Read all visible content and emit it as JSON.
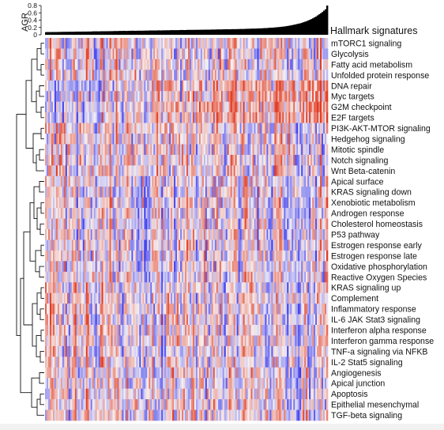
{
  "chart_data": {
    "type": "heatmap",
    "top_bar": {
      "ylabel": "AGR",
      "yticks": [
        "0.8",
        "0.6",
        "0.4",
        "0.2",
        "0"
      ],
      "ylim": [
        0,
        0.8
      ],
      "description_shape": "sorted ascending, mostly near 0.1, rising to ~0.8 at far right"
    },
    "title": "Hallmark signatures",
    "rows": [
      "mTORC1 signaling",
      "Glycolysis",
      "Fatty acid metabolism",
      "Unfolded protein response",
      "DNA repair",
      "Myc targets",
      "G2M checkpoint",
      "E2F targets",
      "PI3K-AKT-MTOR signaling",
      "Hedgehog signaling",
      "Mitotic spindle",
      "Notch signaling",
      "Wnt Beta-catenin",
      "Apical surface",
      "KRAS signaling down",
      "Xenobiotic metabolism",
      "Androgen response",
      "Cholesterol homeostasis",
      "P53 pathway",
      "Estrogen response early",
      "Estrogen response late",
      "Oxidative phosphorylation",
      "Reactive Oxygen Species",
      "KRAS signaling up",
      "Complement",
      "Inflammatory response",
      "IL-6 JAK Stat3 signaling",
      "Interferon alpha response",
      "Interferon gamma response",
      "TNF-a signaling via NFKB",
      "IL-2 Stat5 signaling",
      "Angiogenesis",
      "Apical junction",
      "Apoptosis",
      "Epithelial mesenchymal",
      "TGF-beta signaling"
    ],
    "n_columns": 180,
    "colors": {
      "low": "#3a3af0",
      "mid": "#f5f0f2",
      "high": "#e2391e",
      "bar": "#000000"
    }
  }
}
